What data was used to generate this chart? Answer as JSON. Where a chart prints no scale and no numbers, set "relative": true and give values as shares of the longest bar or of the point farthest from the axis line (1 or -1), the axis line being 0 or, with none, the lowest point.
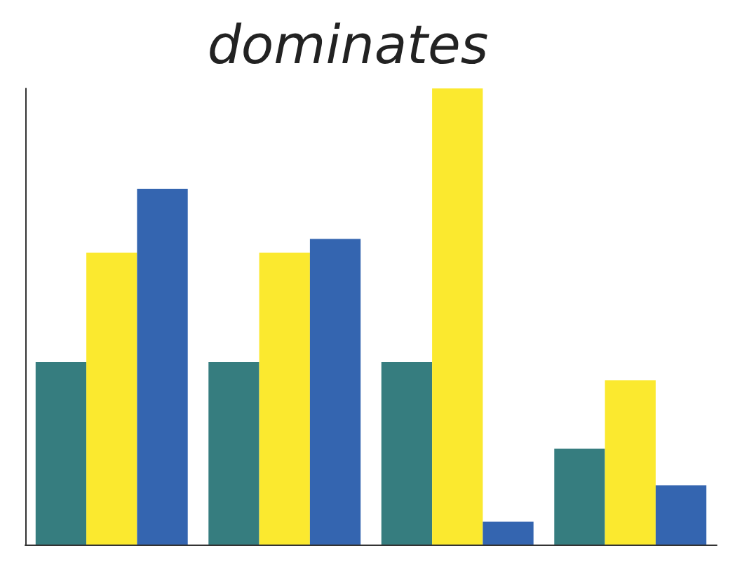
{
  "chart_data": {
    "type": "bar",
    "title": "dominates",
    "relative": true,
    "categories": [
      null,
      null,
      null,
      null
    ],
    "series": [
      {
        "color": "#367d7f",
        "values": [
          0.4,
          0.4,
          0.4,
          0.21
        ]
      },
      {
        "color": "#fbe92f",
        "values": [
          0.64,
          0.64,
          1,
          0.36
        ]
      },
      {
        "color": "#3465b0",
        "values": [
          0.78,
          0.67,
          0.05,
          0.13
        ]
      }
    ],
    "grid": false
  }
}
